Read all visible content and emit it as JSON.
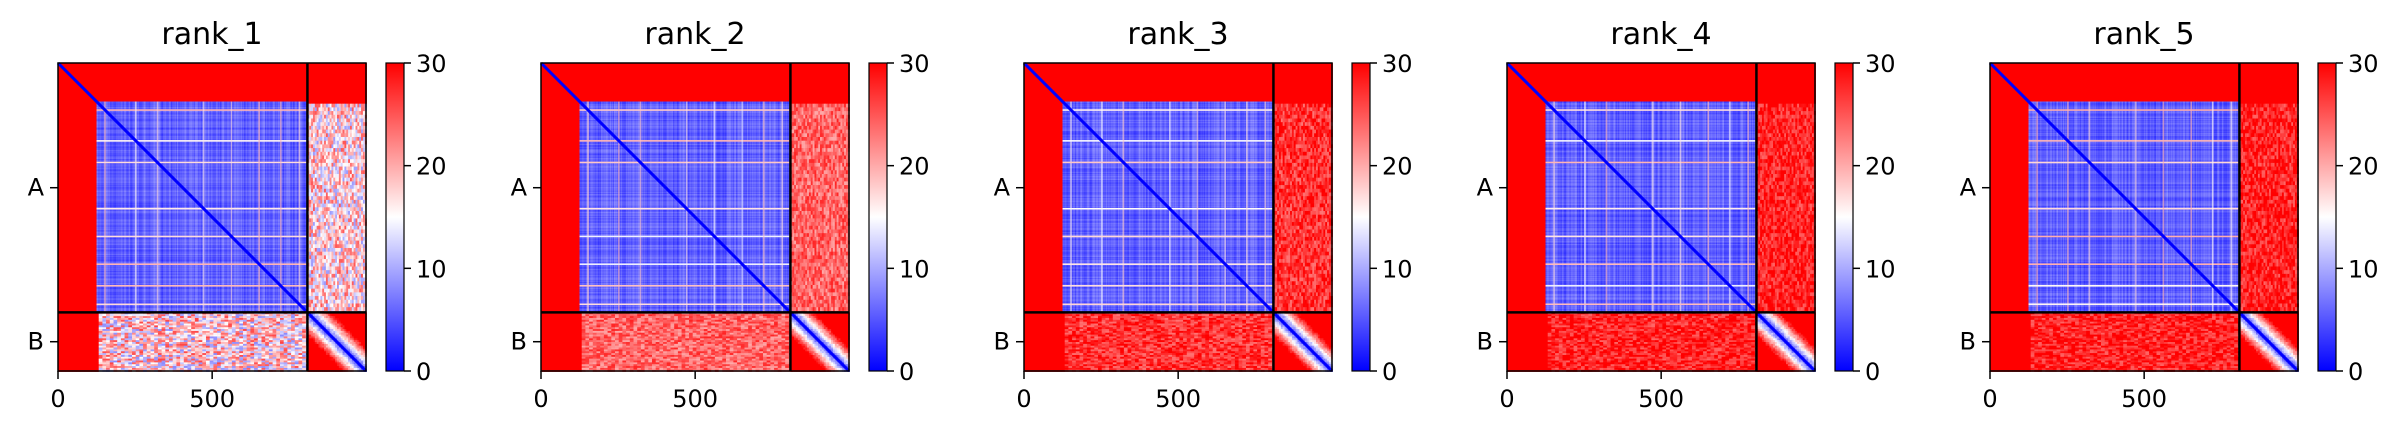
{
  "chart_data": {
    "type": "heatmap",
    "colormap": {
      "name": "bwr",
      "low": "#0000ff",
      "mid": "#ffffff",
      "high": "#ff0000"
    },
    "colorbar": {
      "vmin": 0,
      "vmax": 30,
      "ticks": [
        "0",
        "10",
        "20",
        "30"
      ]
    },
    "x_ticks": [
      {
        "value": 0,
        "label": "0"
      },
      {
        "value": 500,
        "label": "500"
      }
    ],
    "x_range": [
      0,
      999
    ],
    "chains": [
      {
        "label": "A",
        "start": 0,
        "end": 809
      },
      {
        "label": "B",
        "start": 809,
        "end": 999
      }
    ],
    "chain_boundary": 809,
    "disordered_n_terminus_end": 125,
    "panels": [
      {
        "title": "rank_1"
      },
      {
        "title": "rank_2"
      },
      {
        "title": "rank_3"
      },
      {
        "title": "rank_4"
      },
      {
        "title": "rank_5"
      }
    ]
  }
}
